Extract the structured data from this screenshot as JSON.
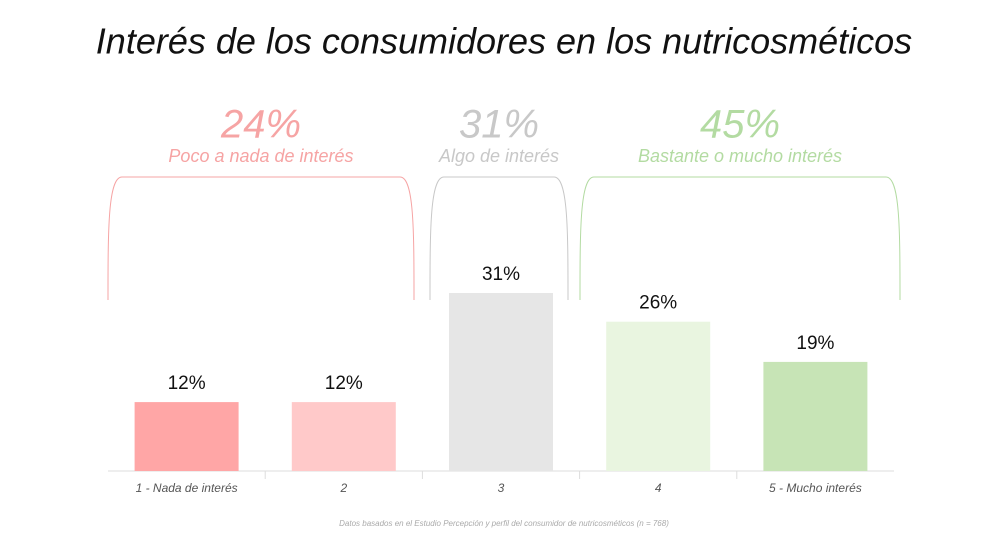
{
  "chart_data": {
    "type": "bar",
    "title": "Interés de los consumidores en los nutricosméticos",
    "categories": [
      "1 - Nada de interés",
      "2",
      "3",
      "4",
      "5 - Mucho interés"
    ],
    "values": [
      12,
      12,
      31,
      26,
      19
    ],
    "value_labels": [
      "12%",
      "12%",
      "31%",
      "26%",
      "19%"
    ],
    "colors": [
      "#ffa6a6",
      "#ffc9c9",
      "#e6e6e6",
      "#e9f5e0",
      "#c7e4b6"
    ],
    "groups": [
      {
        "value": 24,
        "value_label": "24%",
        "label": "Poco a nada de interés",
        "color": "#f6a4a4"
      },
      {
        "value": 31,
        "value_label": "31%",
        "label": "Algo de interés",
        "color": "#c8c8c8"
      },
      {
        "value": 45,
        "value_label": "45%",
        "label": "Bastante o mucho interés",
        "color": "#b3dba2"
      }
    ],
    "footnote": "Datos basados en el Estudio Percepción y perfil del consumidor de nutricosméticos (n = 768)"
  }
}
